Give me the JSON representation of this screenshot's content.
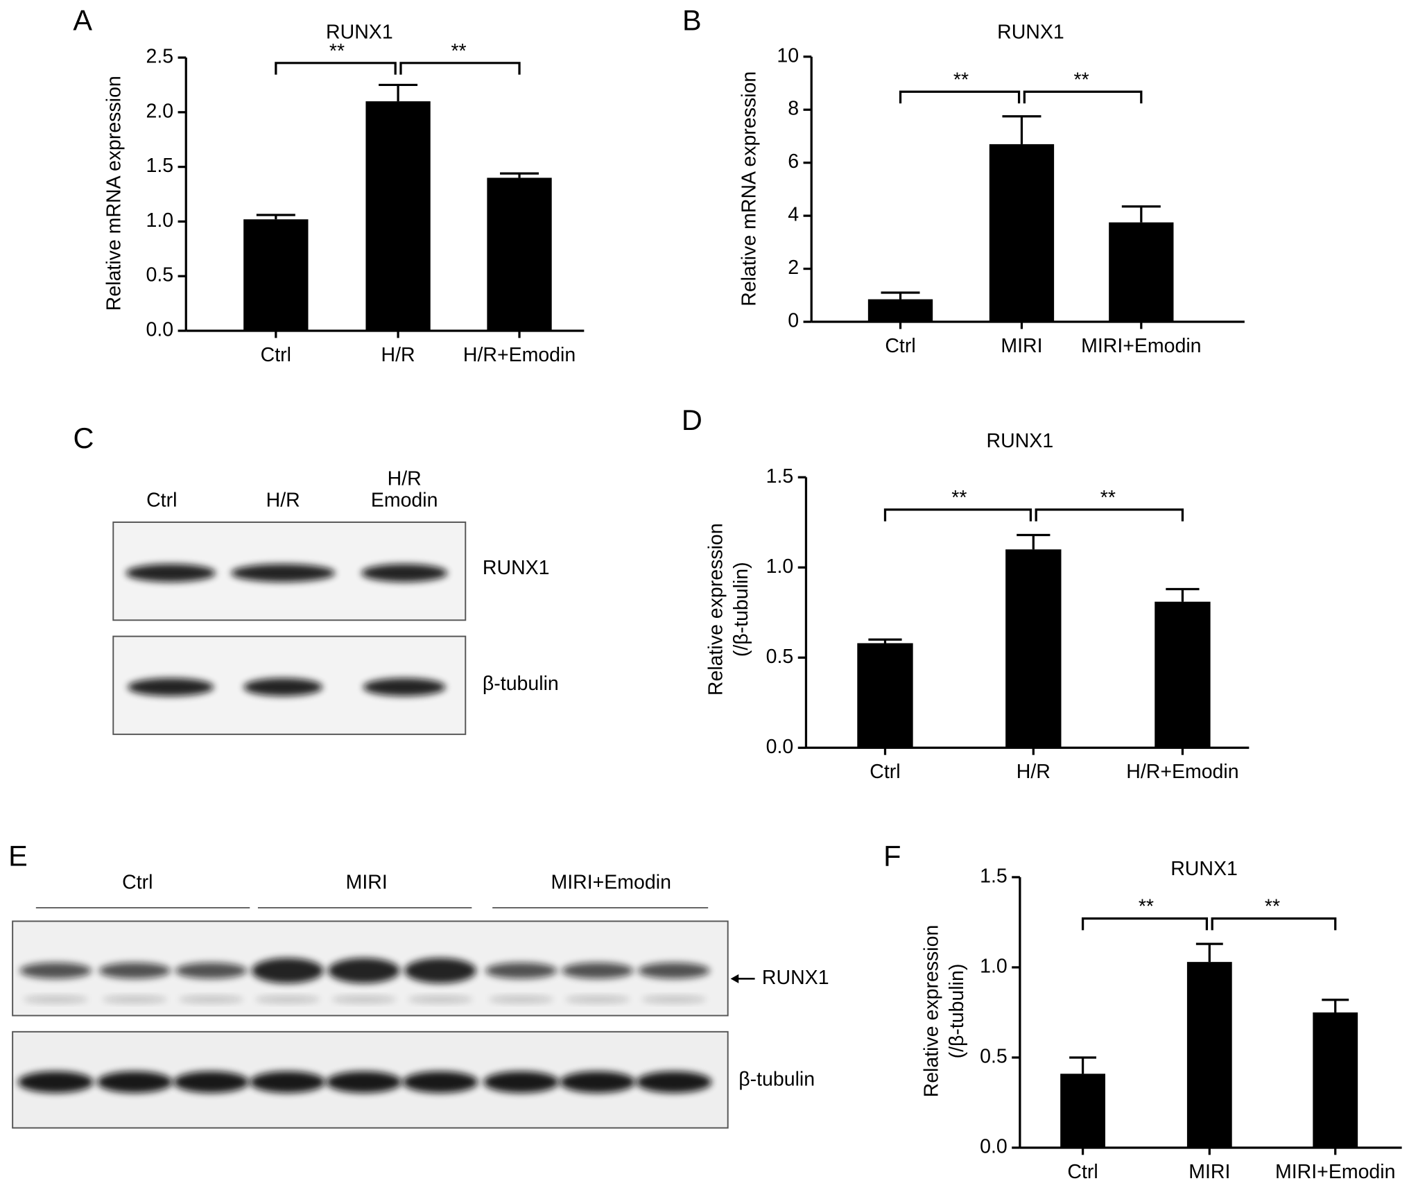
{
  "chart_data": [
    {
      "type": "bar",
      "panel": "A",
      "title": "RUNX1",
      "ylabel": "Relative mRNA expression",
      "categories": [
        "Ctrl",
        "H/R",
        "H/R+Emodin"
      ],
      "values": [
        1.02,
        2.1,
        1.4
      ],
      "errors": [
        0.04,
        0.15,
        0.04
      ],
      "color": "#000000",
      "ylim": [
        0,
        2.5
      ],
      "yticks": [
        {
          "value": 0,
          "label": "0.0"
        },
        0.5,
        {
          "value": 1,
          "label": "1.0"
        },
        1.5,
        {
          "value": 2,
          "label": "2.0"
        },
        2.5
      ],
      "annotations": [
        "**",
        "**"
      ]
    },
    {
      "type": "bar",
      "panel": "B",
      "title": "RUNX1",
      "ylabel": "Relative mRNA expression",
      "categories": [
        "Ctrl",
        "MIRI",
        "MIRI+Emodin"
      ],
      "values": [
        0.85,
        6.7,
        3.75
      ],
      "errors": [
        0.25,
        1.05,
        0.6
      ],
      "color": "#000000",
      "ylim": [
        0,
        10
      ],
      "yticks": [
        0,
        2,
        4,
        6,
        8,
        10
      ],
      "annotations": [
        "**",
        "**"
      ]
    },
    {
      "type": "bar",
      "panel": "D",
      "title": "RUNX1",
      "ylabel": [
        "Relative expression",
        "(/β-tubulin)"
      ],
      "categories": [
        "Ctrl",
        "H/R",
        "H/R+Emodin"
      ],
      "values": [
        0.58,
        1.1,
        0.81
      ],
      "errors": [
        0.02,
        0.08,
        0.07
      ],
      "color": "#000000",
      "ylim": [
        0,
        1.5
      ],
      "yticks": [
        {
          "value": 0,
          "label": "0.0"
        },
        0.5,
        {
          "value": 1,
          "label": "1.0"
        },
        1.5
      ],
      "annotations": [
        "**",
        "**"
      ]
    },
    {
      "type": "bar",
      "panel": "F",
      "title": "RUNX1",
      "ylabel": [
        "Relative expression",
        "(/β-tubulin)"
      ],
      "categories": [
        "Ctrl",
        "MIRI",
        "MIRI+Emodin"
      ],
      "values": [
        0.41,
        1.03,
        0.75
      ],
      "errors": [
        0.09,
        0.1,
        0.07
      ],
      "color": "#000000",
      "ylim": [
        0,
        1.5
      ],
      "yticks": [
        {
          "value": 0,
          "label": "0.0"
        },
        0.5,
        {
          "value": 1,
          "label": "1.0"
        },
        1.5
      ],
      "annotations": [
        "**",
        "**"
      ]
    }
  ],
  "blots": [
    {
      "panel": "C",
      "lanes": [
        "Ctrl",
        "H/R",
        [
          "H/R",
          "Emodin"
        ]
      ],
      "rows": [
        "RUNX1",
        "β-tubulin"
      ]
    },
    {
      "panel": "E",
      "lanes": [
        "Ctrl",
        "MIRI",
        "MIRI+Emodin"
      ],
      "rows": [
        "RUNX1",
        "β-tubulin"
      ]
    }
  ]
}
